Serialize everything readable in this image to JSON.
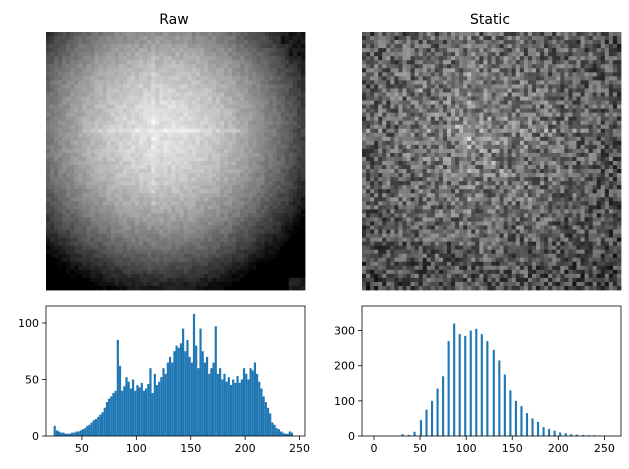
{
  "chart_data": [
    {
      "type": "heatmap",
      "title": "Raw",
      "grid_size": 64,
      "colormap": "gray",
      "axis": "off",
      "description_of_values": "grayscale intensity, brighter toward upper-center, dark corners"
    },
    {
      "type": "heatmap",
      "title": "Static",
      "grid_size": 64,
      "colormap": "gray",
      "axis": "off",
      "description_of_values": "noisy grayscale intensity, contrast-normalized"
    },
    {
      "type": "bar",
      "title": "",
      "xlabel": "",
      "ylabel": "",
      "xlim": [
        17,
        255
      ],
      "ylim": [
        0,
        115
      ],
      "xticks": [
        50,
        100,
        150,
        200,
        250
      ],
      "yticks": [
        0,
        50,
        100
      ],
      "bar_color": "#1f77b4",
      "bin_width": 2,
      "bins": [
        [
          25,
          9
        ],
        [
          27,
          5
        ],
        [
          29,
          4
        ],
        [
          31,
          3
        ],
        [
          33,
          3
        ],
        [
          35,
          2
        ],
        [
          37,
          2
        ],
        [
          39,
          2
        ],
        [
          41,
          3
        ],
        [
          43,
          3
        ],
        [
          45,
          4
        ],
        [
          47,
          4
        ],
        [
          49,
          5
        ],
        [
          51,
          6
        ],
        [
          53,
          7
        ],
        [
          55,
          9
        ],
        [
          57,
          10
        ],
        [
          59,
          12
        ],
        [
          61,
          14
        ],
        [
          63,
          15
        ],
        [
          65,
          17
        ],
        [
          67,
          19
        ],
        [
          69,
          21
        ],
        [
          71,
          25
        ],
        [
          73,
          30
        ],
        [
          75,
          33
        ],
        [
          77,
          35
        ],
        [
          79,
          38
        ],
        [
          81,
          40
        ],
        [
          83,
          85
        ],
        [
          85,
          62
        ],
        [
          87,
          40
        ],
        [
          89,
          44
        ],
        [
          91,
          52
        ],
        [
          93,
          48
        ],
        [
          95,
          42
        ],
        [
          97,
          50
        ],
        [
          99,
          40
        ],
        [
          101,
          45
        ],
        [
          103,
          43
        ],
        [
          105,
          47
        ],
        [
          107,
          40
        ],
        [
          109,
          42
        ],
        [
          111,
          46
        ],
        [
          113,
          60
        ],
        [
          115,
          38
        ],
        [
          117,
          55
        ],
        [
          119,
          45
        ],
        [
          121,
          48
        ],
        [
          123,
          52
        ],
        [
          125,
          60
        ],
        [
          127,
          55
        ],
        [
          129,
          65
        ],
        [
          131,
          70
        ],
        [
          133,
          65
        ],
        [
          135,
          75
        ],
        [
          137,
          80
        ],
        [
          139,
          78
        ],
        [
          141,
          82
        ],
        [
          143,
          95
        ],
        [
          145,
          75
        ],
        [
          147,
          85
        ],
        [
          149,
          70
        ],
        [
          151,
          65
        ],
        [
          153,
          108
        ],
        [
          155,
          80
        ],
        [
          157,
          60
        ],
        [
          159,
          95
        ],
        [
          161,
          75
        ],
        [
          163,
          65
        ],
        [
          165,
          70
        ],
        [
          167,
          55
        ],
        [
          169,
          60
        ],
        [
          171,
          65
        ],
        [
          173,
          97
        ],
        [
          175,
          55
        ],
        [
          177,
          60
        ],
        [
          179,
          50
        ],
        [
          181,
          55
        ],
        [
          183,
          48
        ],
        [
          185,
          52
        ],
        [
          187,
          45
        ],
        [
          189,
          50
        ],
        [
          191,
          47
        ],
        [
          193,
          53
        ],
        [
          195,
          47
        ],
        [
          197,
          50
        ],
        [
          199,
          60
        ],
        [
          201,
          55
        ],
        [
          203,
          50
        ],
        [
          205,
          60
        ],
        [
          207,
          58
        ],
        [
          209,
          65
        ],
        [
          211,
          55
        ],
        [
          213,
          48
        ],
        [
          215,
          42
        ],
        [
          217,
          35
        ],
        [
          219,
          30
        ],
        [
          221,
          25
        ],
        [
          223,
          20
        ],
        [
          225,
          12
        ],
        [
          227,
          10
        ],
        [
          229,
          7
        ],
        [
          231,
          6
        ],
        [
          233,
          4
        ],
        [
          235,
          3
        ],
        [
          237,
          2
        ],
        [
          239,
          2
        ],
        [
          241,
          4
        ],
        [
          243,
          3
        ]
      ]
    },
    {
      "type": "bar",
      "title": "",
      "xlabel": "",
      "ylabel": "",
      "xlim": [
        -13,
        268
      ],
      "ylim": [
        0,
        370
      ],
      "xticks": [
        0,
        50,
        100,
        150,
        200,
        250
      ],
      "yticks": [
        0,
        100,
        200,
        300
      ],
      "bar_color": "#1f77b4",
      "bin_width": 2.3,
      "bins": [
        [
          31,
          5
        ],
        [
          38,
          3
        ],
        [
          44,
          12
        ],
        [
          51,
          45
        ],
        [
          57,
          75
        ],
        [
          63,
          100
        ],
        [
          69,
          135
        ],
        [
          75,
          170
        ],
        [
          81,
          270
        ],
        [
          87,
          320
        ],
        [
          93,
          290
        ],
        [
          99,
          285
        ],
        [
          105,
          300
        ],
        [
          111,
          305
        ],
        [
          117,
          290
        ],
        [
          123,
          270
        ],
        [
          130,
          245
        ],
        [
          136,
          215
        ],
        [
          142,
          175
        ],
        [
          148,
          130
        ],
        [
          154,
          100
        ],
        [
          160,
          85
        ],
        [
          166,
          65
        ],
        [
          172,
          50
        ],
        [
          178,
          40
        ],
        [
          184,
          25
        ],
        [
          190,
          20
        ],
        [
          196,
          15
        ],
        [
          202,
          10
        ],
        [
          208,
          8
        ],
        [
          214,
          5
        ],
        [
          220,
          4
        ],
        [
          227,
          3
        ],
        [
          233,
          2
        ],
        [
          239,
          2
        ],
        [
          246,
          1
        ],
        [
          252,
          1
        ]
      ]
    }
  ]
}
